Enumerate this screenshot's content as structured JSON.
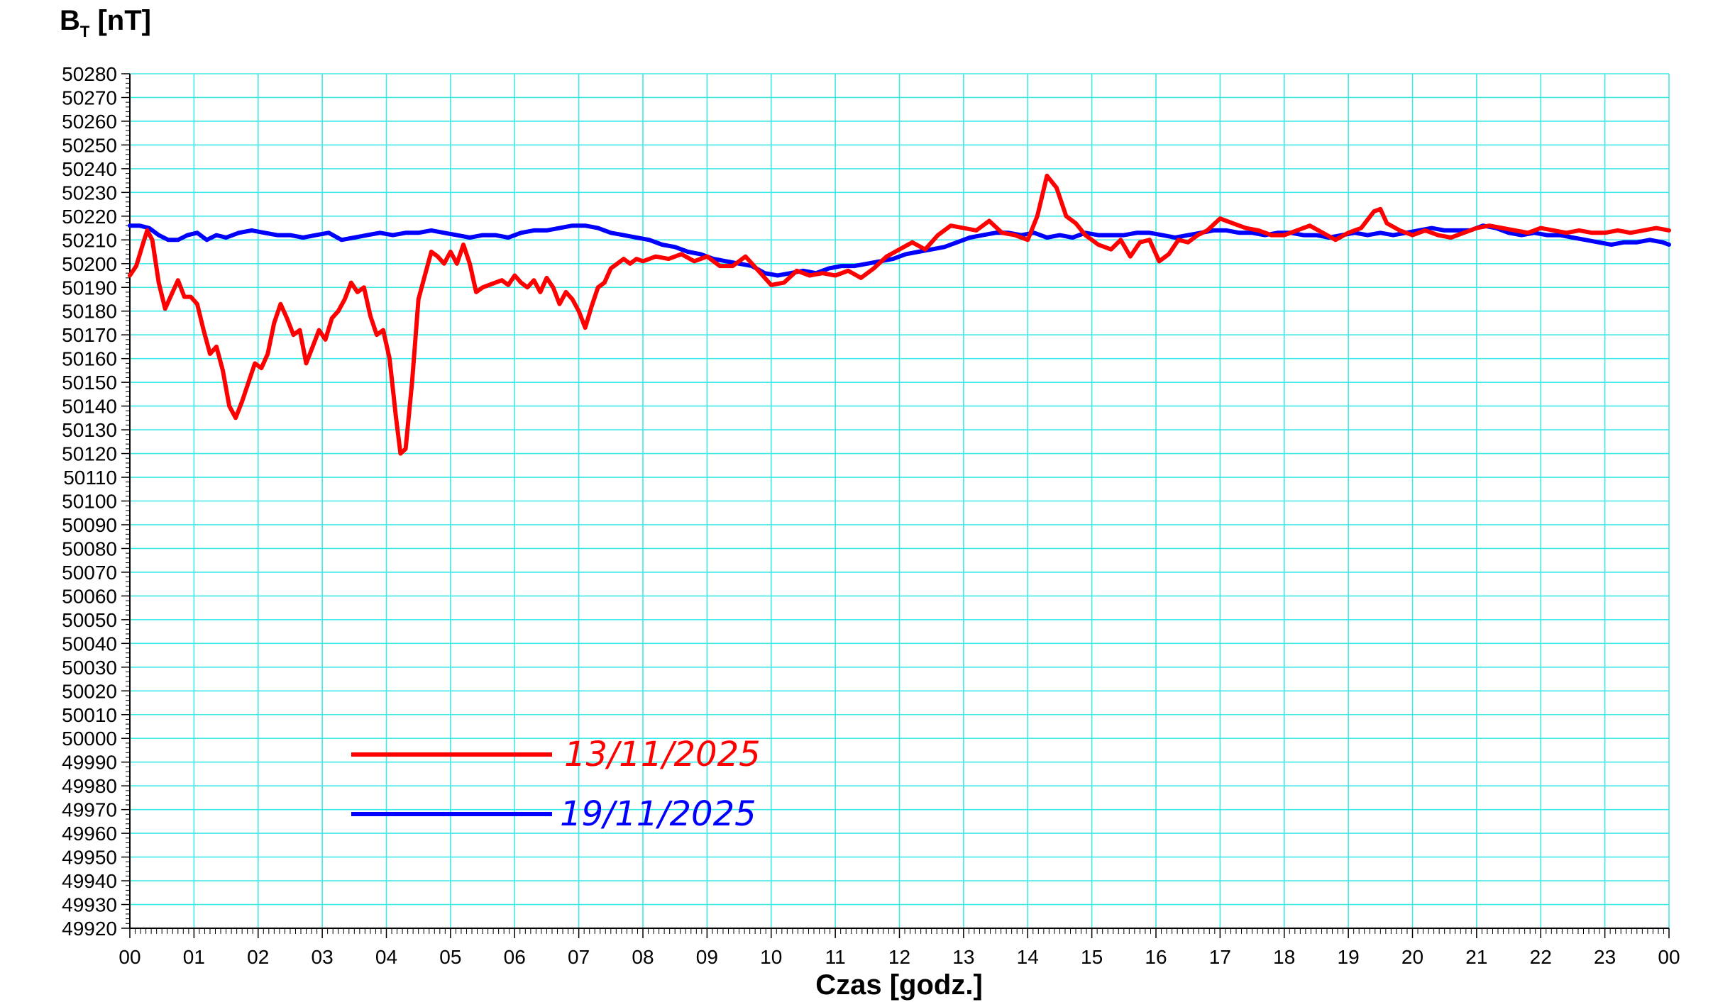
{
  "chart_data": {
    "type": "line",
    "title": {
      "symbol": "B",
      "subscript": "T",
      "unit": " [nT]"
    },
    "xlabel": "Czas [godz.]",
    "xlim": [
      0,
      24
    ],
    "x_tick_labels": [
      "00",
      "01",
      "02",
      "03",
      "04",
      "05",
      "06",
      "07",
      "08",
      "09",
      "10",
      "11",
      "12",
      "13",
      "14",
      "15",
      "16",
      "17",
      "18",
      "19",
      "20",
      "21",
      "22",
      "23",
      "00"
    ],
    "ylim": [
      49920,
      50280
    ],
    "y_tick_step": 10,
    "grid": true,
    "grid_color": "#40e8e8",
    "legend_position": "lower-left",
    "series": [
      {
        "name": "13/11/2025",
        "color": "#ff0000",
        "points": [
          [
            0.0,
            50195
          ],
          [
            0.1,
            50199
          ],
          [
            0.2,
            50208
          ],
          [
            0.27,
            50214
          ],
          [
            0.35,
            50210
          ],
          [
            0.45,
            50192
          ],
          [
            0.55,
            50181
          ],
          [
            0.65,
            50187
          ],
          [
            0.75,
            50193
          ],
          [
            0.85,
            50186
          ],
          [
            0.95,
            50186
          ],
          [
            1.05,
            50183
          ],
          [
            1.15,
            50172
          ],
          [
            1.25,
            50162
          ],
          [
            1.35,
            50165
          ],
          [
            1.45,
            50155
          ],
          [
            1.55,
            50140
          ],
          [
            1.65,
            50135
          ],
          [
            1.75,
            50142
          ],
          [
            1.85,
            50150
          ],
          [
            1.95,
            50158
          ],
          [
            2.05,
            50156
          ],
          [
            2.15,
            50162
          ],
          [
            2.25,
            50175
          ],
          [
            2.35,
            50183
          ],
          [
            2.45,
            50177
          ],
          [
            2.55,
            50170
          ],
          [
            2.65,
            50172
          ],
          [
            2.75,
            50158
          ],
          [
            2.85,
            50165
          ],
          [
            2.95,
            50172
          ],
          [
            3.05,
            50168
          ],
          [
            3.15,
            50177
          ],
          [
            3.25,
            50180
          ],
          [
            3.35,
            50185
          ],
          [
            3.45,
            50192
          ],
          [
            3.55,
            50188
          ],
          [
            3.65,
            50190
          ],
          [
            3.75,
            50178
          ],
          [
            3.85,
            50170
          ],
          [
            3.95,
            50172
          ],
          [
            4.05,
            50160
          ],
          [
            4.15,
            50135
          ],
          [
            4.22,
            50120
          ],
          [
            4.3,
            50122
          ],
          [
            4.4,
            50150
          ],
          [
            4.5,
            50185
          ],
          [
            4.6,
            50195
          ],
          [
            4.7,
            50205
          ],
          [
            4.8,
            50203
          ],
          [
            4.9,
            50200
          ],
          [
            5.0,
            50205
          ],
          [
            5.1,
            50200
          ],
          [
            5.2,
            50208
          ],
          [
            5.3,
            50200
          ],
          [
            5.4,
            50188
          ],
          [
            5.5,
            50190
          ],
          [
            5.6,
            50191
          ],
          [
            5.7,
            50192
          ],
          [
            5.8,
            50193
          ],
          [
            5.9,
            50191
          ],
          [
            6.0,
            50195
          ],
          [
            6.1,
            50192
          ],
          [
            6.2,
            50190
          ],
          [
            6.3,
            50193
          ],
          [
            6.4,
            50188
          ],
          [
            6.5,
            50194
          ],
          [
            6.6,
            50190
          ],
          [
            6.7,
            50183
          ],
          [
            6.8,
            50188
          ],
          [
            6.9,
            50185
          ],
          [
            7.0,
            50180
          ],
          [
            7.1,
            50173
          ],
          [
            7.2,
            50182
          ],
          [
            7.3,
            50190
          ],
          [
            7.4,
            50192
          ],
          [
            7.5,
            50198
          ],
          [
            7.6,
            50200
          ],
          [
            7.7,
            50202
          ],
          [
            7.8,
            50200
          ],
          [
            7.9,
            50202
          ],
          [
            8.0,
            50201
          ],
          [
            8.2,
            50203
          ],
          [
            8.4,
            50202
          ],
          [
            8.6,
            50204
          ],
          [
            8.8,
            50201
          ],
          [
            9.0,
            50203
          ],
          [
            9.2,
            50199
          ],
          [
            9.4,
            50199
          ],
          [
            9.6,
            50203
          ],
          [
            9.8,
            50197
          ],
          [
            10.0,
            50191
          ],
          [
            10.2,
            50192
          ],
          [
            10.4,
            50197
          ],
          [
            10.6,
            50195
          ],
          [
            10.8,
            50196
          ],
          [
            11.0,
            50195
          ],
          [
            11.2,
            50197
          ],
          [
            11.4,
            50194
          ],
          [
            11.6,
            50198
          ],
          [
            11.8,
            50203
          ],
          [
            12.0,
            50206
          ],
          [
            12.2,
            50209
          ],
          [
            12.4,
            50206
          ],
          [
            12.6,
            50212
          ],
          [
            12.8,
            50216
          ],
          [
            13.0,
            50215
          ],
          [
            13.2,
            50214
          ],
          [
            13.4,
            50218
          ],
          [
            13.6,
            50213
          ],
          [
            13.8,
            50212
          ],
          [
            14.0,
            50210
          ],
          [
            14.15,
            50220
          ],
          [
            14.3,
            50237
          ],
          [
            14.45,
            50232
          ],
          [
            14.6,
            50220
          ],
          [
            14.75,
            50217
          ],
          [
            14.9,
            50212
          ],
          [
            15.1,
            50208
          ],
          [
            15.3,
            50206
          ],
          [
            15.45,
            50210
          ],
          [
            15.6,
            50203
          ],
          [
            15.75,
            50209
          ],
          [
            15.9,
            50210
          ],
          [
            16.05,
            50201
          ],
          [
            16.2,
            50204
          ],
          [
            16.35,
            50210
          ],
          [
            16.5,
            50209
          ],
          [
            16.65,
            50212
          ],
          [
            16.8,
            50214
          ],
          [
            17.0,
            50219
          ],
          [
            17.2,
            50217
          ],
          [
            17.4,
            50215
          ],
          [
            17.6,
            50214
          ],
          [
            17.8,
            50212
          ],
          [
            18.0,
            50212
          ],
          [
            18.2,
            50214
          ],
          [
            18.4,
            50216
          ],
          [
            18.6,
            50213
          ],
          [
            18.8,
            50210
          ],
          [
            19.0,
            50213
          ],
          [
            19.2,
            50215
          ],
          [
            19.4,
            50222
          ],
          [
            19.5,
            50223
          ],
          [
            19.6,
            50217
          ],
          [
            19.8,
            50214
          ],
          [
            20.0,
            50212
          ],
          [
            20.2,
            50214
          ],
          [
            20.4,
            50212
          ],
          [
            20.6,
            50211
          ],
          [
            20.8,
            50213
          ],
          [
            21.0,
            50215
          ],
          [
            21.2,
            50216
          ],
          [
            21.4,
            50215
          ],
          [
            21.6,
            50214
          ],
          [
            21.8,
            50213
          ],
          [
            22.0,
            50215
          ],
          [
            22.2,
            50214
          ],
          [
            22.4,
            50213
          ],
          [
            22.6,
            50214
          ],
          [
            22.8,
            50213
          ],
          [
            23.0,
            50213
          ],
          [
            23.2,
            50214
          ],
          [
            23.4,
            50213
          ],
          [
            23.6,
            50214
          ],
          [
            23.8,
            50215
          ],
          [
            24.0,
            50214
          ]
        ]
      },
      {
        "name": "19/11/2025",
        "color": "#0000ff",
        "points": [
          [
            0.0,
            50216
          ],
          [
            0.15,
            50216
          ],
          [
            0.3,
            50215
          ],
          [
            0.45,
            50212
          ],
          [
            0.6,
            50210
          ],
          [
            0.75,
            50210
          ],
          [
            0.9,
            50212
          ],
          [
            1.05,
            50213
          ],
          [
            1.2,
            50210
          ],
          [
            1.35,
            50212
          ],
          [
            1.5,
            50211
          ],
          [
            1.7,
            50213
          ],
          [
            1.9,
            50214
          ],
          [
            2.1,
            50213
          ],
          [
            2.3,
            50212
          ],
          [
            2.5,
            50212
          ],
          [
            2.7,
            50211
          ],
          [
            2.9,
            50212
          ],
          [
            3.1,
            50213
          ],
          [
            3.3,
            50210
          ],
          [
            3.5,
            50211
          ],
          [
            3.7,
            50212
          ],
          [
            3.9,
            50213
          ],
          [
            4.1,
            50212
          ],
          [
            4.3,
            50213
          ],
          [
            4.5,
            50213
          ],
          [
            4.7,
            50214
          ],
          [
            4.9,
            50213
          ],
          [
            5.1,
            50212
          ],
          [
            5.3,
            50211
          ],
          [
            5.5,
            50212
          ],
          [
            5.7,
            50212
          ],
          [
            5.9,
            50211
          ],
          [
            6.1,
            50213
          ],
          [
            6.3,
            50214
          ],
          [
            6.5,
            50214
          ],
          [
            6.7,
            50215
          ],
          [
            6.9,
            50216
          ],
          [
            7.1,
            50216
          ],
          [
            7.3,
            50215
          ],
          [
            7.5,
            50213
          ],
          [
            7.7,
            50212
          ],
          [
            7.9,
            50211
          ],
          [
            8.1,
            50210
          ],
          [
            8.3,
            50208
          ],
          [
            8.5,
            50207
          ],
          [
            8.7,
            50205
          ],
          [
            8.9,
            50204
          ],
          [
            9.1,
            50202
          ],
          [
            9.3,
            50201
          ],
          [
            9.5,
            50200
          ],
          [
            9.7,
            50199
          ],
          [
            9.9,
            50196
          ],
          [
            10.1,
            50195
          ],
          [
            10.3,
            50196
          ],
          [
            10.5,
            50197
          ],
          [
            10.7,
            50196
          ],
          [
            10.9,
            50198
          ],
          [
            11.1,
            50199
          ],
          [
            11.3,
            50199
          ],
          [
            11.5,
            50200
          ],
          [
            11.7,
            50201
          ],
          [
            11.9,
            50202
          ],
          [
            12.1,
            50204
          ],
          [
            12.3,
            50205
          ],
          [
            12.5,
            50206
          ],
          [
            12.7,
            50207
          ],
          [
            12.9,
            50209
          ],
          [
            13.1,
            50211
          ],
          [
            13.3,
            50212
          ],
          [
            13.5,
            50213
          ],
          [
            13.7,
            50213
          ],
          [
            13.9,
            50212
          ],
          [
            14.1,
            50213
          ],
          [
            14.3,
            50211
          ],
          [
            14.5,
            50212
          ],
          [
            14.7,
            50211
          ],
          [
            14.9,
            50213
          ],
          [
            15.1,
            50212
          ],
          [
            15.3,
            50212
          ],
          [
            15.5,
            50212
          ],
          [
            15.7,
            50213
          ],
          [
            15.9,
            50213
          ],
          [
            16.1,
            50212
          ],
          [
            16.3,
            50211
          ],
          [
            16.5,
            50212
          ],
          [
            16.7,
            50213
          ],
          [
            16.9,
            50214
          ],
          [
            17.1,
            50214
          ],
          [
            17.3,
            50213
          ],
          [
            17.5,
            50213
          ],
          [
            17.7,
            50212
          ],
          [
            17.9,
            50213
          ],
          [
            18.1,
            50213
          ],
          [
            18.3,
            50212
          ],
          [
            18.5,
            50212
          ],
          [
            18.7,
            50211
          ],
          [
            18.9,
            50212
          ],
          [
            19.1,
            50213
          ],
          [
            19.3,
            50212
          ],
          [
            19.5,
            50213
          ],
          [
            19.7,
            50212
          ],
          [
            19.9,
            50213
          ],
          [
            20.1,
            50214
          ],
          [
            20.3,
            50215
          ],
          [
            20.5,
            50214
          ],
          [
            20.7,
            50214
          ],
          [
            20.9,
            50214
          ],
          [
            21.1,
            50216
          ],
          [
            21.3,
            50215
          ],
          [
            21.5,
            50213
          ],
          [
            21.7,
            50212
          ],
          [
            21.9,
            50213
          ],
          [
            22.1,
            50212
          ],
          [
            22.3,
            50212
          ],
          [
            22.5,
            50211
          ],
          [
            22.7,
            50210
          ],
          [
            22.9,
            50209
          ],
          [
            23.1,
            50208
          ],
          [
            23.3,
            50209
          ],
          [
            23.5,
            50209
          ],
          [
            23.7,
            50210
          ],
          [
            23.9,
            50209
          ],
          [
            24.0,
            50208
          ]
        ]
      }
    ]
  }
}
